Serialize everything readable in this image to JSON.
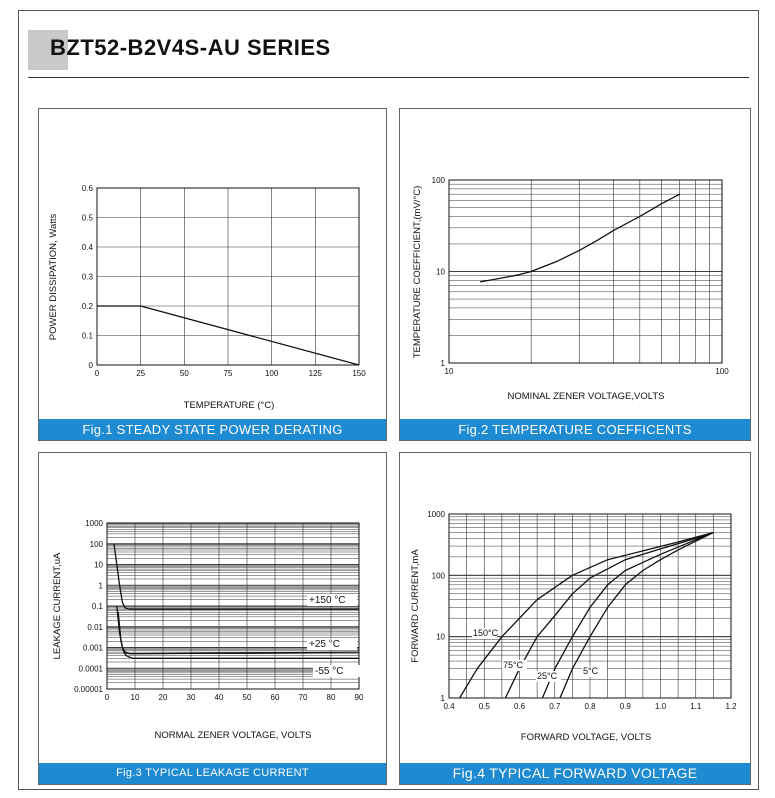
{
  "page": {
    "title": "BZT52-B2V4S-AU SERIES"
  },
  "figures": {
    "fig1": {
      "caption": "Fig.1 STEADY STATE POWER DERATING"
    },
    "fig2": {
      "caption": "Fig.2 TEMPERATURE COEFFICENTS"
    },
    "fig3": {
      "caption": "Fig.3 TYPICAL LEAKAGE CURRENT"
    },
    "fig4": {
      "caption": "Fig.4 TYPICAL FORWARD VOLTAGE"
    }
  },
  "chart_data": [
    {
      "id": "fig1",
      "type": "line",
      "title": "",
      "xlabel": "TEMPERATURE (°C)",
      "ylabel": "POWER DISSIPATION, Watts",
      "xlim": [
        0,
        150
      ],
      "ylim": [
        0,
        0.6
      ],
      "xticks": [
        "0",
        "25",
        "50",
        "75",
        "100",
        "125",
        "150"
      ],
      "yticks": [
        "0",
        "0.1",
        "0.2",
        "0.3",
        "0.4",
        "0.5",
        "0.6"
      ],
      "grid": true,
      "series": [
        {
          "x": [
            0,
            25,
            150
          ],
          "y": [
            0.2,
            0.2,
            0
          ]
        }
      ]
    },
    {
      "id": "fig2",
      "type": "line",
      "title": "",
      "xlabel": "NOMINAL ZENER VOLTAGE,VOLTS",
      "ylabel": "TEMPERATURE COEFFICIENT,(mV/°C)",
      "xscale": "log",
      "yscale": "log",
      "xlim": [
        10,
        100
      ],
      "ylim": [
        1,
        100
      ],
      "xticks": [
        "10",
        "100"
      ],
      "yticks": [
        "1",
        "10",
        "100"
      ],
      "grid": true,
      "series": [
        {
          "x": [
            13,
            15,
            18,
            20,
            22,
            25,
            30,
            35,
            40,
            50,
            60,
            70
          ],
          "y": [
            7.7,
            8.3,
            9.2,
            10,
            11.2,
            13,
            17,
            22,
            28,
            40,
            55,
            70
          ]
        }
      ]
    },
    {
      "id": "fig3",
      "type": "line",
      "title": "",
      "xlabel": "NORMAL ZENER VOLTAGE, VOLTS",
      "ylabel": "LEAKAGE CURRENT,uA",
      "yscale": "log",
      "xlim": [
        0,
        90
      ],
      "ylim": [
        1e-05,
        1000
      ],
      "xticks": [
        "0",
        "10",
        "20",
        "30",
        "40",
        "50",
        "60",
        "70",
        "80",
        "90"
      ],
      "yticks": [
        "0.00001",
        "0.0001",
        "0.001",
        "0.01",
        "0.1",
        "1",
        "10",
        "100",
        "1000"
      ],
      "grid": true,
      "series": [
        {
          "name": "+150 °C",
          "x": [
            2.5,
            3.5,
            4.5,
            5.5,
            6.5,
            8,
            12,
            90
          ],
          "y": [
            100,
            10,
            1,
            0.15,
            0.08,
            0.07,
            0.07,
            0.07
          ]
        },
        {
          "name": "+25 °C",
          "x": [
            3.5,
            4.5,
            5.5,
            6.5,
            8,
            12,
            90
          ],
          "y": [
            0.1,
            0.005,
            0.001,
            0.0006,
            0.0005,
            0.0005,
            0.0006
          ]
        },
        {
          "name": "-55 °C",
          "x": [
            4,
            5,
            6,
            7,
            9,
            12,
            90
          ],
          "y": [
            0.05,
            0.002,
            0.0006,
            0.0004,
            0.0003,
            0.0003,
            0.0003
          ]
        }
      ]
    },
    {
      "id": "fig4",
      "type": "line",
      "title": "",
      "xlabel": "FORWARD VOLTAGE, VOLTS",
      "ylabel": "FORWARD CURRENT,mA",
      "yscale": "log",
      "xlim": [
        0.4,
        1.2
      ],
      "ylim": [
        1,
        1000
      ],
      "xticks": [
        "0.4",
        "0.5",
        "0.6",
        "0.7",
        "0.8",
        "0.9",
        "1.0",
        "1.1",
        "1.2"
      ],
      "yticks": [
        "1",
        "10",
        "100",
        "1000"
      ],
      "grid": true,
      "series": [
        {
          "name": "150°C",
          "x": [
            0.43,
            0.48,
            0.55,
            0.65,
            0.75,
            0.85,
            0.95,
            1.05,
            1.15
          ],
          "y": [
            1,
            3,
            10,
            40,
            100,
            180,
            250,
            350,
            500
          ]
        },
        {
          "name": "75°C",
          "x": [
            0.56,
            0.6,
            0.65,
            0.7,
            0.75,
            0.8,
            0.9,
            1.0,
            1.1,
            1.15
          ],
          "y": [
            1,
            3,
            10,
            22,
            50,
            90,
            180,
            270,
            400,
            500
          ]
        },
        {
          "name": "25°C",
          "x": [
            0.665,
            0.7,
            0.75,
            0.8,
            0.85,
            0.9,
            1.0,
            1.1,
            1.15
          ],
          "y": [
            1,
            3,
            10,
            30,
            70,
            120,
            220,
            380,
            500
          ]
        },
        {
          "name": "5°C",
          "x": [
            0.715,
            0.75,
            0.8,
            0.85,
            0.9,
            0.95,
            1.0,
            1.05,
            1.1,
            1.15
          ],
          "y": [
            1,
            3,
            10,
            30,
            70,
            120,
            180,
            260,
            360,
            500
          ]
        }
      ]
    }
  ]
}
